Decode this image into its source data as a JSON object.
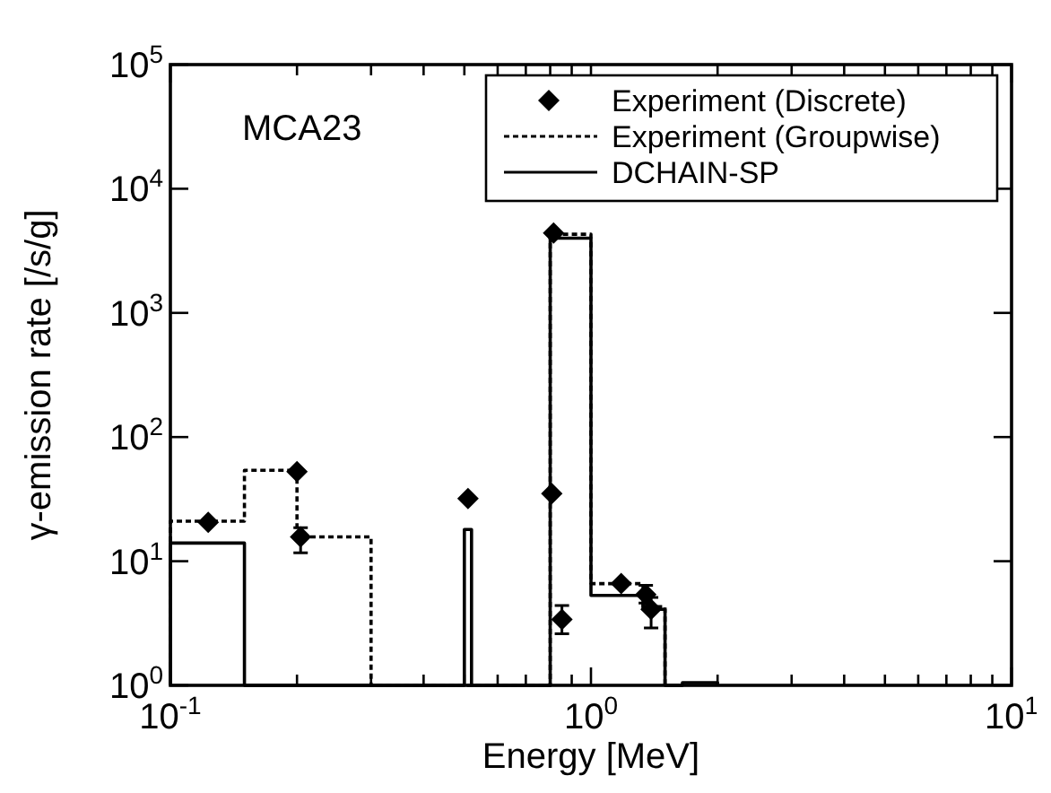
{
  "chart_data": {
    "type": "scatter",
    "xlabel": "Energy [MeV]",
    "ylabel": "γ-emission rate [/s/g]",
    "annotations": [
      "MCA23"
    ],
    "log": "xy",
    "legend": "top right",
    "xlim": [
      0.1,
      10
    ],
    "ylim": [
      1,
      100000
    ],
    "xticks": [
      {
        "value": 0.1,
        "label": "10$^{-1}$"
      },
      {
        "value": 0.2,
        "label": null
      },
      {
        "value": 0.3,
        "label": null
      },
      {
        "value": 0.4,
        "label": null
      },
      {
        "value": 0.5,
        "label": null
      },
      {
        "value": 0.6,
        "label": null
      },
      {
        "value": 0.7,
        "label": null
      },
      {
        "value": 0.8,
        "label": null
      },
      {
        "value": 0.9,
        "label": null
      },
      {
        "value": 1,
        "label": "10$^{0}$"
      },
      {
        "value": 2,
        "label": null
      },
      {
        "value": 3,
        "label": null
      },
      {
        "value": 4,
        "label": null
      },
      {
        "value": 5,
        "label": null
      },
      {
        "value": 6,
        "label": null
      },
      {
        "value": 7,
        "label": null
      },
      {
        "value": 8,
        "label": null
      },
      {
        "value": 9,
        "label": null
      },
      {
        "value": 10,
        "label": "10$^{1}$"
      }
    ],
    "yticks": [
      {
        "value": 1,
        "label": "10$^{0}$"
      },
      {
        "value": 10,
        "label": "10$^{1}$"
      },
      {
        "value": 100,
        "label": "10$^{2}$"
      },
      {
        "value": 1000,
        "label": "10$^{3}$"
      },
      {
        "value": 10000,
        "label": "10$^{4}$"
      },
      {
        "value": 100000,
        "label": "10$^{5}$"
      }
    ],
    "series": [
      {
        "name": "Experiment (Discrete)",
        "marker": "diamond",
        "color": "#000000",
        "x": [
          0.123,
          0.2,
          0.204,
          0.51,
          0.807,
          0.815,
          0.853,
          1.18,
          1.35,
          1.39
        ],
        "values": [
          20.6,
          52.6,
          15.7,
          32,
          35,
          4400,
          3.4,
          6.6,
          5.4,
          4.1
        ],
        "errors": [
          null,
          null,
          [
            11.7,
            18.6
          ],
          null,
          null,
          null,
          [
            2.6,
            4.4
          ],
          null,
          [
            4.6,
            6.4
          ],
          [
            2.9,
            5.1
          ]
        ]
      },
      {
        "name": "Experiment (Groupwise)",
        "type": "step",
        "line_style": "dotted",
        "color": "#000000",
        "x": [
          0.1,
          0.1,
          0.15,
          0.2,
          0.3,
          0.8,
          1.0,
          1.33,
          1.5
        ],
        "values": [
          1,
          21,
          54,
          15.7,
          1,
          4300,
          6.6,
          4.3,
          1
        ]
      },
      {
        "name": "DCHAIN-SP",
        "type": "step",
        "line_style": "solid",
        "color": "#000000",
        "x": [
          0.1,
          0.1,
          0.15,
          0.5,
          0.52,
          0.8,
          1.0,
          1.33,
          1.5,
          1.65,
          2.0
        ],
        "values": [
          1,
          14,
          1,
          18,
          1,
          4000,
          5.3,
          4.1,
          1,
          1.05,
          1
        ]
      }
    ]
  }
}
